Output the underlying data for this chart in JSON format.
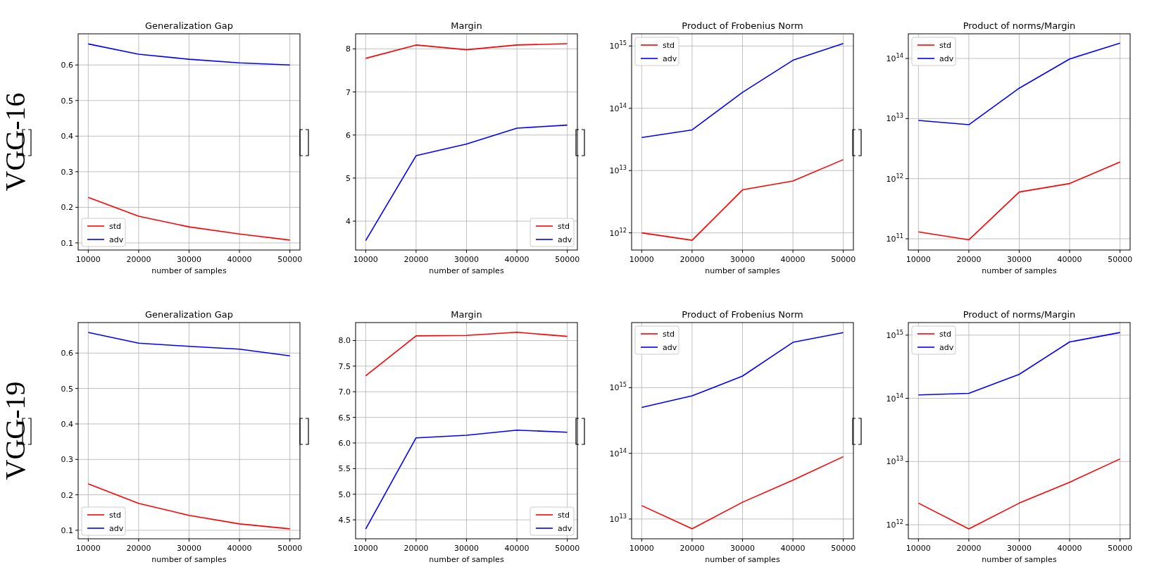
{
  "chart_data": [
    {
      "type": "line",
      "title": "Generalization Gap",
      "xlabel": "number of samples",
      "ylabel": "VGG-16",
      "x": [
        10000,
        20000,
        30000,
        40000,
        50000
      ],
      "xlim": [
        8000,
        52000
      ],
      "xticks": [
        10000,
        20000,
        30000,
        40000,
        50000
      ],
      "ylim": [
        0.08,
        0.6875
      ],
      "yticks": [
        0.1,
        0.2,
        0.3,
        0.4,
        0.5,
        0.6
      ],
      "grid": true,
      "legend": "bottom left",
      "series": [
        {
          "name": "std",
          "color": "#ff0000",
          "values": [
            0.228,
            0.175,
            0.145,
            0.125,
            0.108
          ]
        },
        {
          "name": "adv",
          "color": "#0000ff",
          "values": [
            0.659,
            0.63,
            0.616,
            0.606,
            0.6
          ]
        }
      ]
    },
    {
      "type": "line",
      "title": "Margin",
      "xlabel": "number of samples",
      "x": [
        10000,
        20000,
        30000,
        40000,
        50000
      ],
      "xlim": [
        8000,
        52000
      ],
      "xticks": [
        10000,
        20000,
        30000,
        40000,
        50000
      ],
      "ylim": [
        3.33,
        8.35
      ],
      "yticks": [
        4,
        5,
        6,
        7,
        8
      ],
      "grid": true,
      "legend": "bottom right",
      "series": [
        {
          "name": "std",
          "color": "#ff0000",
          "values": [
            7.78,
            8.09,
            7.98,
            8.09,
            8.12
          ]
        },
        {
          "name": "adv",
          "color": "#0000ff",
          "values": [
            3.55,
            5.52,
            5.79,
            6.16,
            6.23
          ]
        }
      ]
    },
    {
      "type": "line",
      "title": "Product of Frobenius Norm",
      "xlabel": "number of samples",
      "x": [
        10000,
        20000,
        30000,
        40000,
        50000
      ],
      "xlim": [
        8000,
        52000
      ],
      "xticks": [
        10000,
        20000,
        30000,
        40000,
        50000
      ],
      "log": "y",
      "ylim": [
        530000000000.0,
        1570000000000000.0
      ],
      "yticks": [
        {
          "value": 1000000000000.0,
          "label": "10$^{12}$"
        },
        {
          "value": 10000000000000.0,
          "label": "10$^{13}$"
        },
        {
          "value": 100000000000000.0,
          "label": "10$^{14}$"
        },
        {
          "value": 1000000000000000.0,
          "label": "10$^{15}$"
        }
      ],
      "grid": true,
      "legend": "top left",
      "series": [
        {
          "name": "std",
          "color": "#ff0000",
          "values": [
            1000000000000.0,
            760000000000.0,
            4900000000000.0,
            6800000000000.0,
            15000000000000.0
          ]
        },
        {
          "name": "adv",
          "color": "#0000ff",
          "values": [
            34000000000000.0,
            45000000000000.0,
            180000000000000.0,
            590000000000000.0,
            1100000000000000.0
          ]
        }
      ]
    },
    {
      "type": "line",
      "title": "Product of norms/Margin",
      "xlabel": "number of samples",
      "x": [
        10000,
        20000,
        30000,
        40000,
        50000
      ],
      "xlim": [
        8000,
        52000
      ],
      "xticks": [
        10000,
        20000,
        30000,
        40000,
        50000
      ],
      "log": "y",
      "ylim": [
        65000000000.0,
        257000000000000.0
      ],
      "yticks": [
        {
          "value": 100000000000.0,
          "label": "10$^{11}$"
        },
        {
          "value": 1000000000000.0,
          "label": "10$^{12}$"
        },
        {
          "value": 10000000000000.0,
          "label": "10$^{13}$"
        },
        {
          "value": 100000000000000.0,
          "label": "10$^{14}$"
        }
      ],
      "grid": true,
      "legend": "top left",
      "series": [
        {
          "name": "std",
          "color": "#ff0000",
          "values": [
            130000000000.0,
            96000000000.0,
            600000000000.0,
            830000000000.0,
            1900000000000.0
          ]
        },
        {
          "name": "adv",
          "color": "#0000ff",
          "values": [
            9300000000000.0,
            7900000000000.0,
            32000000000000.0,
            98000000000000.0,
            180000000000000.0
          ]
        }
      ]
    },
    {
      "type": "line",
      "title": "Generalization Gap",
      "xlabel": "number of samples",
      "ylabel": "VGG-19",
      "x": [
        10000,
        20000,
        30000,
        40000,
        50000
      ],
      "xlim": [
        8000,
        52000
      ],
      "xticks": [
        10000,
        20000,
        30000,
        40000,
        50000
      ],
      "ylim": [
        0.076,
        0.686
      ],
      "yticks": [
        0.1,
        0.2,
        0.3,
        0.4,
        0.5,
        0.6
      ],
      "grid": true,
      "legend": "bottom left",
      "series": [
        {
          "name": "std",
          "color": "#ff0000",
          "values": [
            0.231,
            0.176,
            0.142,
            0.118,
            0.104
          ]
        },
        {
          "name": "adv",
          "color": "#0000ff",
          "values": [
            0.658,
            0.628,
            0.619,
            0.611,
            0.592
          ]
        }
      ]
    },
    {
      "type": "line",
      "title": "Margin",
      "xlabel": "number of samples",
      "x": [
        10000,
        20000,
        30000,
        40000,
        50000
      ],
      "xlim": [
        8000,
        52000
      ],
      "xticks": [
        10000,
        20000,
        30000,
        40000,
        50000
      ],
      "ylim": [
        4.13,
        8.35
      ],
      "yticks": [
        {
          "value": 4.5,
          "label": "4.5"
        },
        {
          "value": 5,
          "label": "5.0"
        },
        {
          "value": 5.5,
          "label": "5.5"
        },
        {
          "value": 6,
          "label": "6.0"
        },
        {
          "value": 6.5,
          "label": "6.5"
        },
        {
          "value": 7,
          "label": "7.0"
        },
        {
          "value": 7.5,
          "label": "7.5"
        },
        {
          "value": 8,
          "label": "8.0"
        }
      ],
      "grid": true,
      "legend": "bottom right",
      "series": [
        {
          "name": "std",
          "color": "#ff0000",
          "values": [
            7.31,
            8.09,
            8.1,
            8.16,
            8.08
          ]
        },
        {
          "name": "adv",
          "color": "#0000ff",
          "values": [
            4.32,
            6.1,
            6.15,
            6.25,
            6.21
          ]
        }
      ]
    },
    {
      "type": "line",
      "title": "Product of Frobenius Norm",
      "xlabel": "number of samples",
      "x": [
        10000,
        20000,
        30000,
        40000,
        50000
      ],
      "xlim": [
        8000,
        52000
      ],
      "xticks": [
        10000,
        20000,
        30000,
        40000,
        50000
      ],
      "log": "y",
      "ylim": [
        5000000000000.0,
        9800000000000000.0
      ],
      "yticks": [
        {
          "value": 10000000000000.0,
          "label": "10$^{13}$"
        },
        {
          "value": 100000000000000.0,
          "label": "10$^{14}$"
        },
        {
          "value": 1000000000000000.0,
          "label": "10$^{15}$"
        }
      ],
      "grid": true,
      "legend": "top left",
      "series": [
        {
          "name": "std",
          "color": "#ff0000",
          "values": [
            16000000000000.0,
            7100000000000.0,
            18000000000000.0,
            39000000000000.0,
            89000000000000.0
          ]
        },
        {
          "name": "adv",
          "color": "#0000ff",
          "values": [
            500000000000000.0,
            750000000000000.0,
            1500000000000000.0,
            4900000000000000.0,
            6900000000000000.0
          ]
        }
      ]
    },
    {
      "type": "line",
      "title": "Product of norms/Margin",
      "xlabel": "number of samples",
      "x": [
        10000,
        20000,
        30000,
        40000,
        50000
      ],
      "xlim": [
        8000,
        52000
      ],
      "xticks": [
        10000,
        20000,
        30000,
        40000,
        50000
      ],
      "log": "y",
      "ylim": [
        600000000000.0,
        1580000000000000.0
      ],
      "yticks": [
        {
          "value": 1000000000000.0,
          "label": "10$^{12}$"
        },
        {
          "value": 10000000000000.0,
          "label": "10$^{13}$"
        },
        {
          "value": 100000000000000.0,
          "label": "10$^{14}$"
        },
        {
          "value": 1000000000000000.0,
          "label": "10$^{15}$"
        }
      ],
      "grid": true,
      "legend": "top left",
      "series": [
        {
          "name": "std",
          "color": "#ff0000",
          "values": [
            2200000000000.0,
            860000000000.0,
            2200000000000.0,
            4700000000000.0,
            11000000000000.0
          ]
        },
        {
          "name": "adv",
          "color": "#0000ff",
          "values": [
            113000000000000.0,
            120000000000000.0,
            240000000000000.0,
            780000000000000.0,
            1100000000000000.0
          ]
        }
      ]
    }
  ]
}
